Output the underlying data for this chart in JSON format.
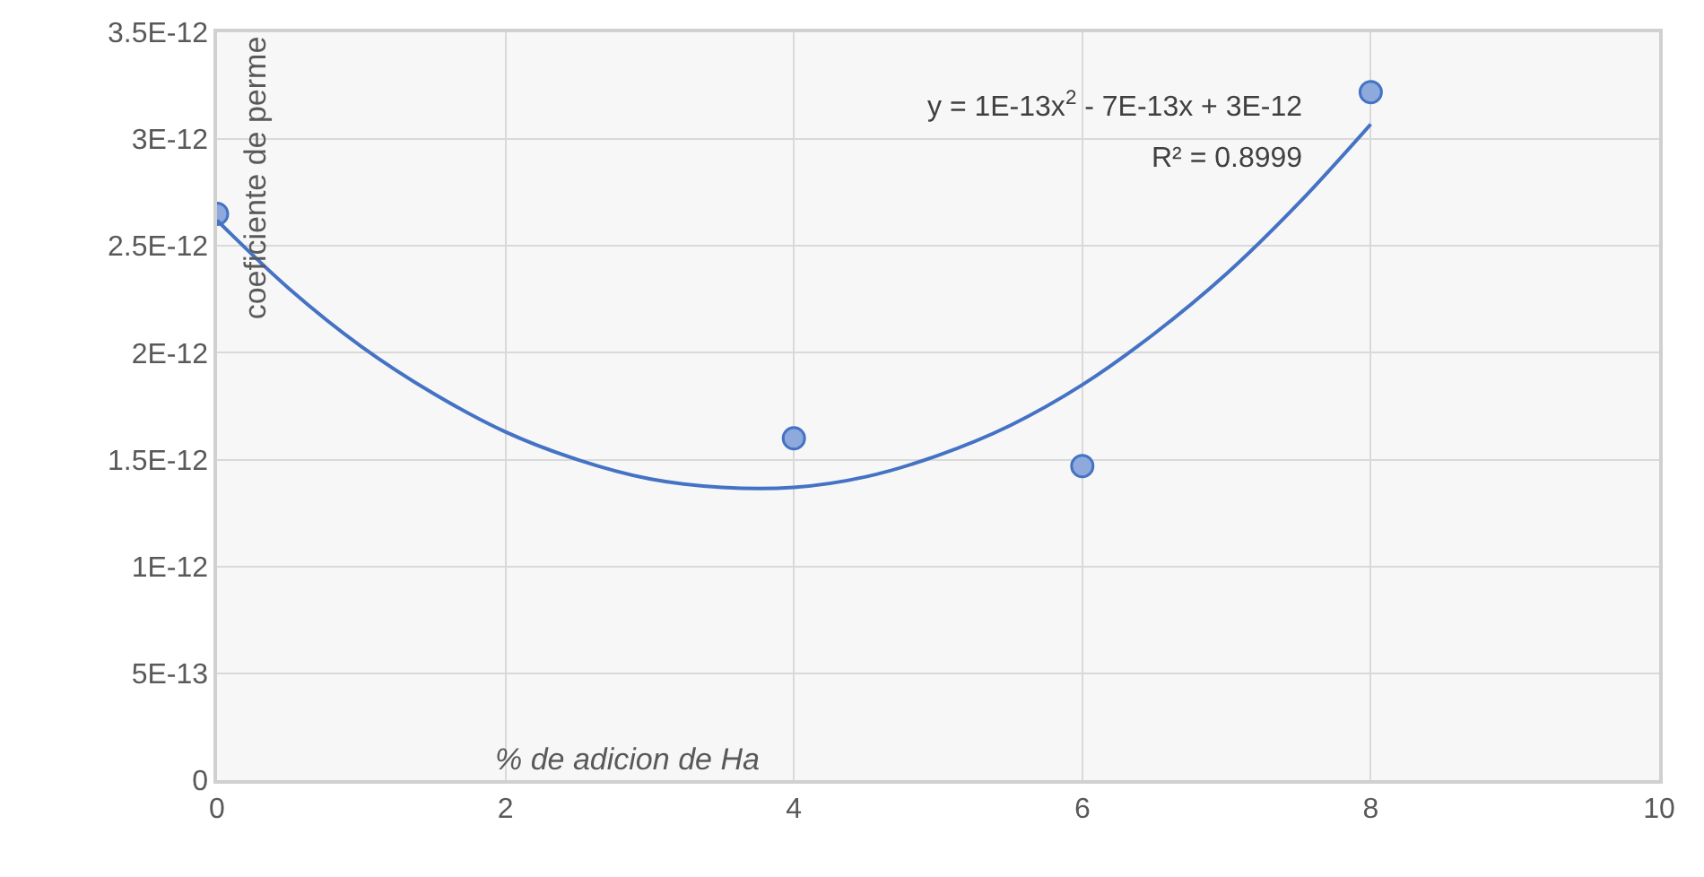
{
  "chart_data": {
    "type": "scatter",
    "xlabel": "% de adicion de Ha",
    "ylabel": "coeficiente de perme",
    "annotations": [
      "y = 1E-13x$^{2}$ - 7E-13x + 3E-12",
      "R² = 0.8999"
    ],
    "series": [
      {
        "color": "#8ea9db",
        "x": [
          0,
          4,
          6,
          8
        ],
        "values": [
          2.65e-12,
          1.6e-12,
          1.47e-12,
          3.22e-12
        ],
        "marker": "circle"
      },
      {
        "type": "line",
        "color": "#4472c4",
        "x": [
          0,
          0.5,
          1,
          1.5,
          2,
          2.5,
          3,
          3.5,
          4,
          4.5,
          5,
          5.5,
          6,
          6.5,
          7,
          7.5,
          8
        ],
        "values": [
          2.62e-12,
          2.3e-12,
          2.03e-12,
          1.81e-12,
          1.63e-12,
          1.5e-12,
          1.41e-12,
          1.37e-12,
          1.37e-12,
          1.42e-12,
          1.52e-12,
          1.66e-12,
          1.85e-12,
          2.09e-12,
          2.37e-12,
          2.7e-12,
          3.07e-12
        ],
        "line_style": "solid"
      }
    ],
    "xlim": [
      0,
      10
    ],
    "xticks": [
      0,
      2,
      4,
      6,
      8,
      10
    ],
    "ylim": [
      0,
      3.5e-12
    ],
    "yticks": [
      0,
      {
        "value": 5e-13,
        "label": "5E-13"
      },
      {
        "value": 1e-12,
        "label": "1E-12"
      },
      {
        "value": 1.5e-12,
        "label": "1.5E-12"
      },
      {
        "value": 2e-12,
        "label": "2E-12"
      },
      {
        "value": 2.5e-12,
        "label": "2.5E-12"
      },
      {
        "value": 3e-12,
        "label": "3E-12"
      },
      {
        "value": 3.5e-12,
        "label": "3.5E-12"
      }
    ],
    "grid": true
  }
}
